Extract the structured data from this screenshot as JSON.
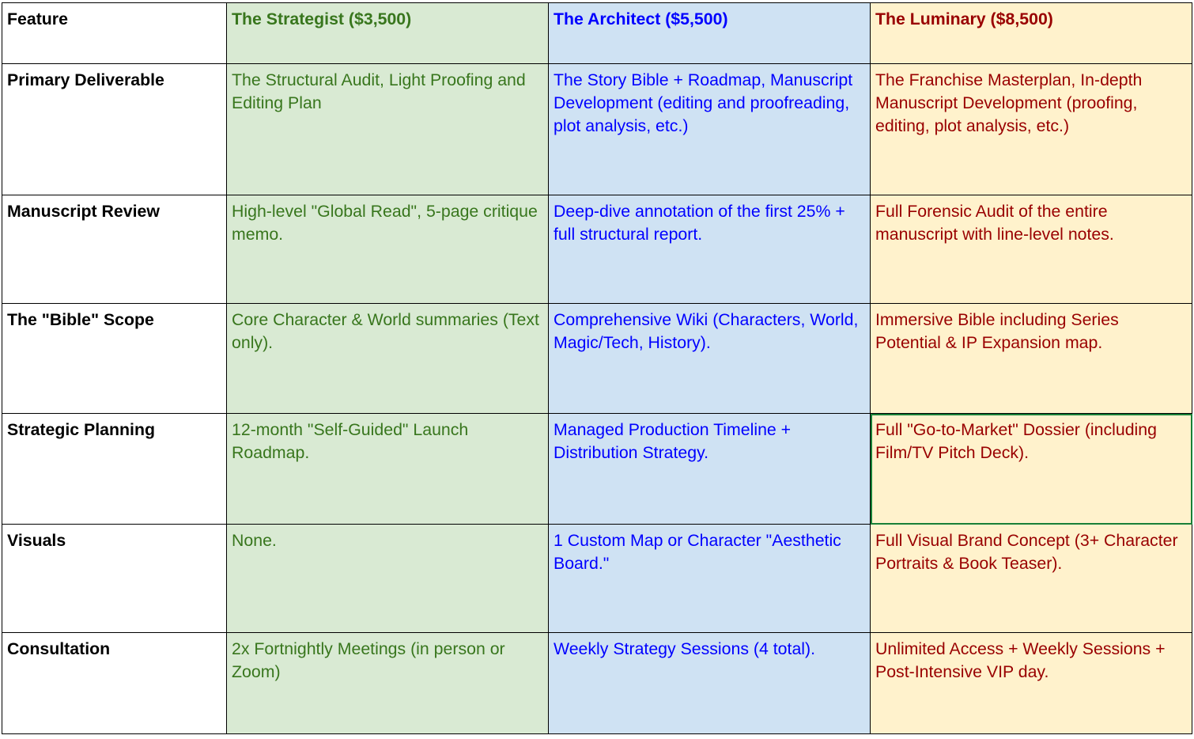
{
  "header": {
    "feature": "Feature",
    "tier1": "The Strategist ($3,500)",
    "tier2": "The Architect ($5,500)",
    "tier3": "The Luminary ($8,500)"
  },
  "rows": [
    {
      "feature": "Primary Deliverable",
      "tier1": "The Structural Audit, Light Proofing and Editing Plan",
      "tier2": "The Story Bible + Roadmap, Manuscript Development (editing and proofreading, plot analysis, etc.)",
      "tier3": "The Franchise Masterplan, In-depth Manuscript Development (proofing, editing, plot analysis, etc.)"
    },
    {
      "feature": "Manuscript Review",
      "tier1": "High-level \"Global Read\", 5-page critique memo.",
      "tier2": "Deep-dive annotation of the first 25% + full structural report.",
      "tier3": "Full Forensic Audit of the entire manuscript with line-level notes."
    },
    {
      "feature": "The \"Bible\" Scope",
      "tier1": "Core Character & World summaries (Text only).",
      "tier2": "Comprehensive Wiki (Characters, World, Magic/Tech, History).",
      "tier3": "Immersive Bible including Series Potential & IP Expansion map."
    },
    {
      "feature": "Strategic Planning",
      "tier1": "12-month \"Self-Guided\" Launch Roadmap.",
      "tier2": "Managed Production Timeline + Distribution Strategy.",
      "tier3": "Full \"Go-to-Market\" Dossier (including Film/TV Pitch Deck)."
    },
    {
      "feature": "Visuals",
      "tier1": "None.",
      "tier2": "1 Custom Map or Character \"Aesthetic Board.\"",
      "tier3": "Full Visual Brand Concept (3+ Character Portraits & Book Teaser)."
    },
    {
      "feature": "Consultation",
      "tier1": "2x Fortnightly Meetings (in person or Zoom)",
      "tier2": "Weekly Strategy Sessions (4 total).",
      "tier3": "Unlimited Access + Weekly Sessions + Post-Intensive VIP day."
    }
  ],
  "colors": {
    "tier1_bg": "#d9ead3",
    "tier1_text": "#38761d",
    "tier2_bg": "#cfe2f3",
    "tier2_text": "#0000ff",
    "tier3_bg": "#fff2cc",
    "tier3_text": "#990000",
    "selection": "#188038"
  }
}
